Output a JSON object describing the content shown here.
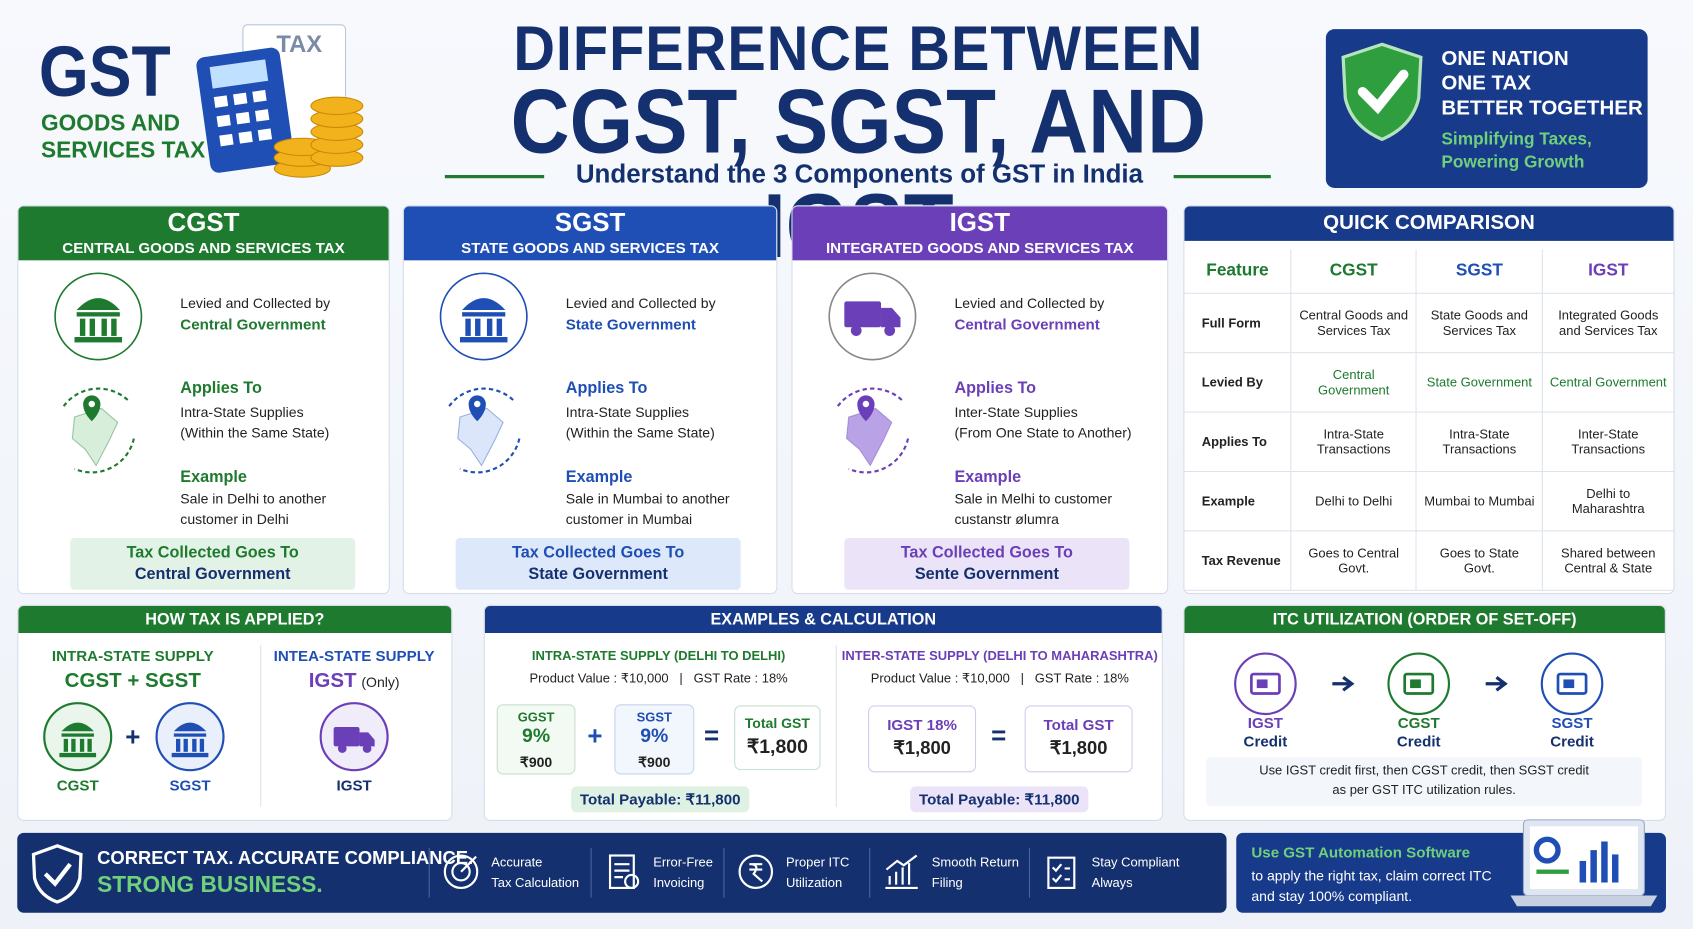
{
  "header": {
    "logo_title": "GST",
    "logo_sub": [
      "GOODS AND",
      "SERVICES TAX"
    ],
    "icon_label": "TAX",
    "title_line1": "DIFFERENCE BETWEEN",
    "title_line2": "CGST, SGST, AND IGST",
    "subtitle": "Understand the 3 Components of GST in India"
  },
  "badge": {
    "lines": [
      "ONE NATION",
      "ONE TAX",
      "BETTER TOGETHER"
    ],
    "tagline": [
      "Simplifying Taxes,",
      "Powering Growth"
    ]
  },
  "cards": [
    {
      "code": "CGST",
      "full": "CENTRAL GOODS AND SERVICES TAX",
      "levied": "Levied and Collected by",
      "levied_by": "Central Government",
      "applies_heading": "Applies To",
      "applies": [
        "Intra-State Supplies",
        "(Within the Same State)"
      ],
      "example_heading": "Example",
      "example": [
        "Sale in Delhi to another",
        "customer in Delhi"
      ],
      "collected": [
        "Tax Collected Goes To",
        "Central Government"
      ]
    },
    {
      "code": "SGST",
      "full": "STATE GOODS AND SERVICES TAX",
      "levied": "Levied and Collected by",
      "levied_by": "State Government",
      "applies_heading": "Applies To",
      "applies": [
        "Intra-State Supplies",
        "(Within the Same State)"
      ],
      "example_heading": "Example",
      "example": [
        "Sale in Mumbai to another",
        "customer in Mumbai"
      ],
      "collected": [
        "Tax Collected Goes To",
        "State Government"
      ]
    },
    {
      "code": "IGST",
      "full": "INTEGRATED GOODS AND SERVICES TAX",
      "levied": "Levied and Collected by",
      "levied_by": "Central Government",
      "applies_heading": "Applies To",
      "applies": [
        "Inter-State Supplies",
        "(From One State to Another)"
      ],
      "example_heading": "Example",
      "example": [
        "Sale in Melhi to customer",
        "custanstr ølumra"
      ],
      "collected": [
        "Tax Collected Goes To",
        "Sente Government"
      ]
    }
  ],
  "comparison": {
    "title": "QUICK COMPARISON",
    "header": [
      "Feature",
      "CGST",
      "SGST",
      "IGST"
    ],
    "rows": [
      [
        "Full Form",
        "Central Goods and Services Tax",
        "State Goods and Services Tax",
        "Integrated Goods and Services Tax"
      ],
      [
        "Levied By",
        "Central Government",
        "State Government",
        "Central Government"
      ],
      [
        "Applies To",
        "Intra-State Transactions",
        "Intra-State Transactions",
        "Inter-State Transactions"
      ],
      [
        "Example",
        "Delhi to Delhi",
        "Mumbai to Mumbai",
        "Delhi to Maharashtra"
      ],
      [
        "Tax Revenue",
        "Goes to Central Govt.",
        "Goes to State Govt.",
        "Shared between Central & State"
      ]
    ]
  },
  "how_applied": {
    "title": "HOW TAX IS APPLIED?",
    "intra": {
      "heading": "INTRA-STATE SUPPLY",
      "formula": "CGST + SGST",
      "plus": "+",
      "labels": [
        "CGST",
        "SGST"
      ]
    },
    "inter": {
      "heading": "INTEA-STATE SUPPLY",
      "formula": "IGST",
      "note": "(Only)",
      "label": "IGST"
    }
  },
  "examples": {
    "title": "EXAMPLES & CALCULATION",
    "intra": {
      "heading": "INTRA-STATE SUPPLY (DELHI TO DELHI)",
      "info": "Product Value : ₹10,000   |   GST Rate : 18%",
      "boxes": [
        {
          "label": "GGST",
          "rate": "9%",
          "amount": "₹900"
        },
        {
          "label": "SGST",
          "rate": "9%",
          "amount": "₹900"
        }
      ],
      "plus": "+",
      "equals": "=",
      "total": {
        "label": "Total GST",
        "amount": "₹1,800"
      },
      "payable": "Total Payable: ₹11,800"
    },
    "inter": {
      "heading": "INTER-STATE SUPPLY (DELHI TO MAHARASHTRA)",
      "info": "Product Value : ₹10,000   |   GST Rate : 18%",
      "box": {
        "label": "IGST 18%",
        "amount": "₹1,800"
      },
      "equals": "=",
      "total": {
        "label": "Total GST",
        "amount": "₹1,800"
      },
      "payable": "Total Payable: ₹11,800"
    }
  },
  "itc": {
    "title": "ITC UTILIZATION (ORDER OF SET-OFF)",
    "steps": [
      [
        "IGST",
        "Credit"
      ],
      [
        "CGST",
        "Credit"
      ],
      [
        "SGST",
        "Credit"
      ]
    ],
    "note": [
      "Use IGST credit first, then CGST credit, then SGST credit",
      "as per GST ITC utilization rules."
    ]
  },
  "footer": {
    "slogan1": "CORRECT TAX. ACCURATE COMPLIANCE.",
    "slogan2": "STRONG BUSINESS.",
    "features": [
      [
        "Accurate",
        "Tax Calculation"
      ],
      [
        "Error-Free",
        "Invoicing"
      ],
      [
        "Proper ITC",
        "Utilization"
      ],
      [
        "Smooth Return",
        "Filing"
      ],
      [
        "Stay Compliant",
        "Always"
      ]
    ],
    "promo": {
      "heading": "Use GST Automation Software",
      "lines": [
        "to apply the right tax, claim correct ITC",
        "and stay 100% compliant."
      ]
    }
  }
}
